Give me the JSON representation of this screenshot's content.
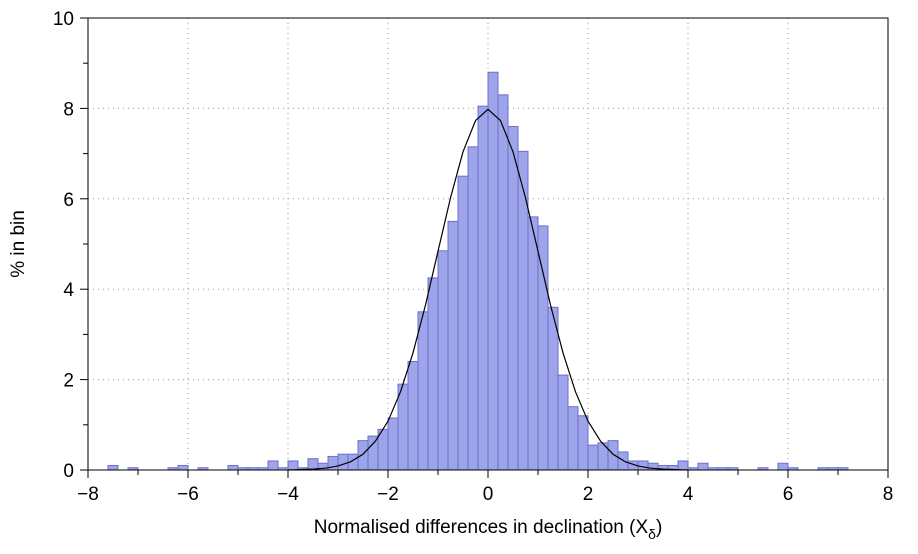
{
  "chart_data": {
    "type": "histogram",
    "xlabel": [
      "Normalised differences in declination  (X",
      "δ",
      ")"
    ],
    "ylabel": "% in bin",
    "bins": [
      -7.6,
      -7.4,
      -7.2,
      -7.0,
      -6.8,
      -6.6,
      -6.4,
      -6.2,
      -6.0,
      -5.8,
      -5.6,
      -5.4,
      -5.2,
      -5.0,
      -4.8,
      -4.6,
      -4.4,
      -4.2,
      -4.0,
      -3.8,
      -3.6,
      -3.4,
      -3.2,
      -3.0,
      -2.8,
      -2.6,
      -2.4,
      -2.2,
      -2.0,
      -1.8,
      -1.6,
      -1.4,
      -1.2,
      -1.0,
      -0.8,
      -0.6,
      -0.4,
      -0.2,
      0,
      0.2,
      0.4,
      0.6,
      0.8,
      1.0,
      1.2,
      1.4,
      1.6,
      1.8,
      2.0,
      2.2,
      2.4,
      2.6,
      2.8,
      3.0,
      3.2,
      3.4,
      3.6,
      3.8,
      4.0,
      4.2,
      4.4,
      4.6,
      4.8,
      5.0,
      5.2,
      5.4,
      5.6,
      5.8,
      6.0,
      6.2,
      6.4,
      6.6,
      6.8,
      7.0,
      7.2
    ],
    "values": [
      0.1,
      0,
      0.05,
      0,
      0,
      0,
      0.05,
      0.1,
      0,
      0.05,
      0,
      0,
      0.1,
      0.05,
      0.05,
      0.05,
      0.2,
      0.05,
      0.2,
      0.05,
      0.25,
      0.15,
      0.3,
      0.35,
      0.35,
      0.65,
      0.75,
      0.9,
      1.15,
      1.9,
      2.4,
      3.5,
      4.25,
      4.85,
      5.5,
      6.5,
      7.15,
      8.05,
      8.8,
      8.3,
      7.6,
      7.05,
      5.6,
      5.4,
      3.6,
      2.1,
      1.4,
      1.2,
      0.55,
      0.6,
      0.65,
      0.4,
      0.2,
      0.2,
      0.15,
      0.1,
      0.1,
      0.2,
      0.05,
      0.15,
      0.05,
      0.05,
      0.05,
      0,
      0,
      0.05,
      0,
      0.15,
      0.05,
      0,
      0,
      0.05,
      0.05,
      0.05
    ],
    "color": "#9ea4ea",
    "edge_color": "#6b71c9",
    "curve": {
      "color": "#000000",
      "x": [
        -4,
        -3.75,
        -3.5,
        -3.25,
        -3,
        -2.75,
        -2.5,
        -2.25,
        -2,
        -1.75,
        -1.5,
        -1.25,
        -1,
        -0.75,
        -0.5,
        -0.25,
        0,
        0.25,
        0.5,
        0.75,
        1,
        1.25,
        1.5,
        1.75,
        2,
        2.25,
        2.5,
        2.75,
        3,
        3.25,
        3.5,
        3.75,
        4
      ],
      "values": [
        0,
        0.01,
        0.02,
        0.04,
        0.09,
        0.18,
        0.35,
        0.64,
        1.08,
        1.73,
        2.59,
        3.65,
        4.84,
        6.02,
        7.04,
        7.73,
        7.98,
        7.73,
        7.04,
        6.02,
        4.84,
        3.65,
        2.59,
        1.73,
        1.08,
        0.64,
        0.35,
        0.18,
        0.09,
        0.04,
        0.02,
        0.01,
        0
      ]
    },
    "xlim": [
      -8,
      8
    ],
    "ylim": [
      0,
      10
    ],
    "xticks": [
      {
        "value": -8,
        "label": "−8"
      },
      {
        "value": -6,
        "label": "−6"
      },
      {
        "value": -4,
        "label": "−4"
      },
      {
        "value": -2,
        "label": "−2"
      },
      0,
      2,
      4,
      6,
      8
    ],
    "yticks": [
      0,
      2,
      4,
      6,
      8,
      10
    ],
    "xminorticks": [
      -7,
      -5,
      -3,
      -1,
      1,
      3,
      5,
      7
    ],
    "yminorticks": [
      1,
      3,
      5,
      7,
      9
    ],
    "grid": true
  }
}
